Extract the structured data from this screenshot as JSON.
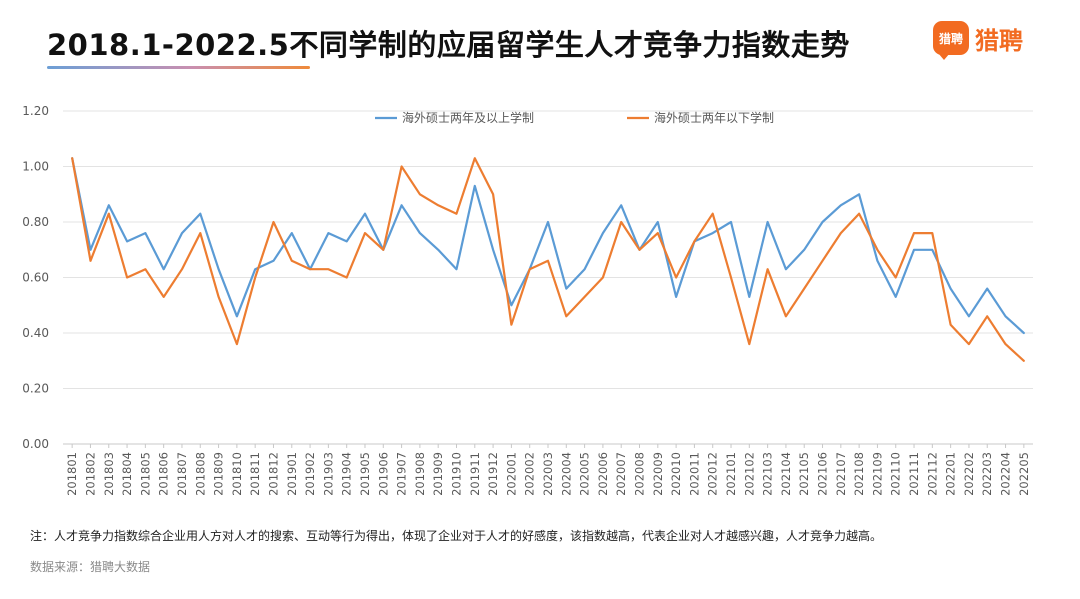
{
  "header": {
    "title": "2018.1-2022.5不同学制的应届留学生人才竞争力指数走势",
    "logo_badge": "猎聘",
    "logo_text": "猎聘",
    "brand_color": "#f26b21"
  },
  "chart_data": {
    "type": "line",
    "title": "",
    "xlabel": "",
    "ylabel": "",
    "ylim": [
      0,
      1.2
    ],
    "yticks": [
      "0.00",
      "0.20",
      "0.40",
      "0.60",
      "0.80",
      "1.00",
      "1.20"
    ],
    "grid": true,
    "legend_position": "top",
    "categories": [
      "201801",
      "201802",
      "201803",
      "201804",
      "201805",
      "201806",
      "201807",
      "201808",
      "201809",
      "201810",
      "201811",
      "201812",
      "201901",
      "201902",
      "201903",
      "201904",
      "201905",
      "201906",
      "201907",
      "201908",
      "201909",
      "201910",
      "201911",
      "201912",
      "202001",
      "202002",
      "202003",
      "202004",
      "202005",
      "202006",
      "202007",
      "202008",
      "202009",
      "202010",
      "202011",
      "202012",
      "202101",
      "202102",
      "202103",
      "202104",
      "202105",
      "202106",
      "202107",
      "202108",
      "202109",
      "202110",
      "202111",
      "202112",
      "202201",
      "202202",
      "202203",
      "202204",
      "202205"
    ],
    "series": [
      {
        "name": "海外硕士两年及以上学制",
        "color": "#5b9bd5",
        "values": [
          1.03,
          0.7,
          0.86,
          0.73,
          0.76,
          0.63,
          0.76,
          0.83,
          0.63,
          0.46,
          0.63,
          0.66,
          0.76,
          0.63,
          0.76,
          0.73,
          0.83,
          0.7,
          0.86,
          0.76,
          0.7,
          0.63,
          0.93,
          0.7,
          0.5,
          0.63,
          0.8,
          0.56,
          0.63,
          0.76,
          0.86,
          0.7,
          0.8,
          0.53,
          0.73,
          0.76,
          0.8,
          0.53,
          0.8,
          0.63,
          0.7,
          0.8,
          0.86,
          0.9,
          0.66,
          0.53,
          0.7,
          0.7,
          0.56,
          0.46,
          0.56,
          0.46,
          0.4
        ]
      },
      {
        "name": "海外硕士两年以下学制",
        "color": "#ed7d31",
        "values": [
          1.03,
          0.66,
          0.83,
          0.6,
          0.63,
          0.53,
          0.63,
          0.76,
          0.53,
          0.36,
          0.6,
          0.8,
          0.66,
          0.63,
          0.63,
          0.6,
          0.76,
          0.7,
          1.0,
          0.9,
          0.86,
          0.83,
          1.03,
          0.9,
          0.43,
          0.63,
          0.66,
          0.46,
          0.53,
          0.6,
          0.8,
          0.7,
          0.76,
          0.6,
          0.73,
          0.83,
          0.6,
          0.36,
          0.63,
          0.46,
          0.56,
          0.66,
          0.76,
          0.83,
          0.7,
          0.6,
          0.76,
          0.76,
          0.43,
          0.36,
          0.46,
          0.36,
          0.3
        ]
      }
    ]
  },
  "footer": {
    "note": "注：人才竞争力指数综合企业用人方对人才的搜索、互动等行为得出，体现了企业对于人才的好感度，该指数越高，代表企业对人才越感兴趣，人才竞争力越高。",
    "source": "数据来源：猎聘大数据"
  }
}
